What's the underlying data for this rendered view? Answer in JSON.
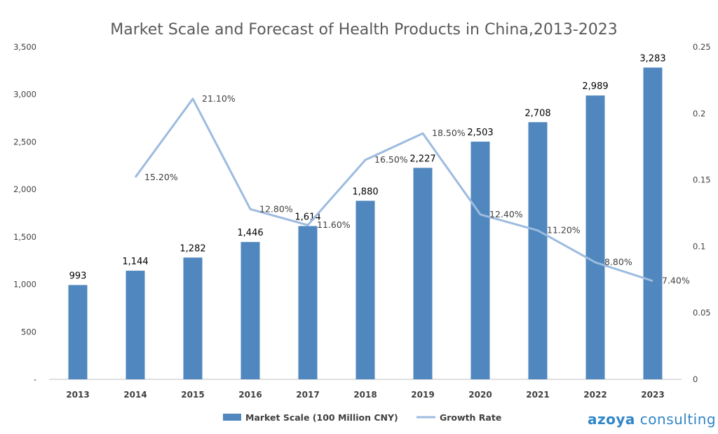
{
  "chart_data": {
    "type": "bar",
    "title": "Market Scale and Forecast of Health Products in China,2013-2023",
    "categories": [
      "2013",
      "2014",
      "2015",
      "2016",
      "2017",
      "2018",
      "2019",
      "2020",
      "2021",
      "2022",
      "2023"
    ],
    "series": [
      {
        "name": "Market Scale (100 Million CNY)",
        "type": "bar",
        "axis": "left",
        "values": [
          993,
          1144,
          1282,
          1446,
          1614,
          1880,
          2227,
          2503,
          2708,
          2989,
          3283
        ],
        "labels": [
          "993",
          "1,144",
          "1,282",
          "1,446",
          "1,614",
          "1,880",
          "2,227",
          "2,503",
          "2,708",
          "2,989",
          "3,283"
        ]
      },
      {
        "name": "Growth Rate",
        "type": "line",
        "axis": "right",
        "values": [
          null,
          0.152,
          0.211,
          0.128,
          0.116,
          0.165,
          0.185,
          0.124,
          0.112,
          0.088,
          0.074
        ],
        "labels": [
          "",
          "15.20%",
          "21.10%",
          "12.80%",
          "11.60%",
          "16.50%",
          "18.50%",
          "12.40%",
          "11.20%",
          "8.80%",
          "7.40%"
        ]
      }
    ],
    "y_left": {
      "ylim": [
        0,
        3500
      ],
      "ticks": [
        0,
        500,
        1000,
        1500,
        2000,
        2500,
        3000,
        3500
      ],
      "tick_labels": [
        "-",
        "500",
        "1,000",
        "1,500",
        "2,000",
        "2,500",
        "3,000",
        "3,500"
      ]
    },
    "y_right": {
      "ylim": [
        0,
        0.25
      ],
      "ticks": [
        0,
        0.05,
        0.1,
        0.15,
        0.2,
        0.25
      ],
      "tick_labels": [
        "0",
        "0.05",
        "0.1",
        "0.15",
        "0.2",
        "0.25"
      ]
    },
    "grid": false,
    "legend_position": "bottom",
    "colors": {
      "bar": "#4f87be",
      "line": "#9dbbe0",
      "axis": "#bfbfbf"
    }
  },
  "branding": {
    "part1": "azoya",
    "part2": "consulting"
  }
}
